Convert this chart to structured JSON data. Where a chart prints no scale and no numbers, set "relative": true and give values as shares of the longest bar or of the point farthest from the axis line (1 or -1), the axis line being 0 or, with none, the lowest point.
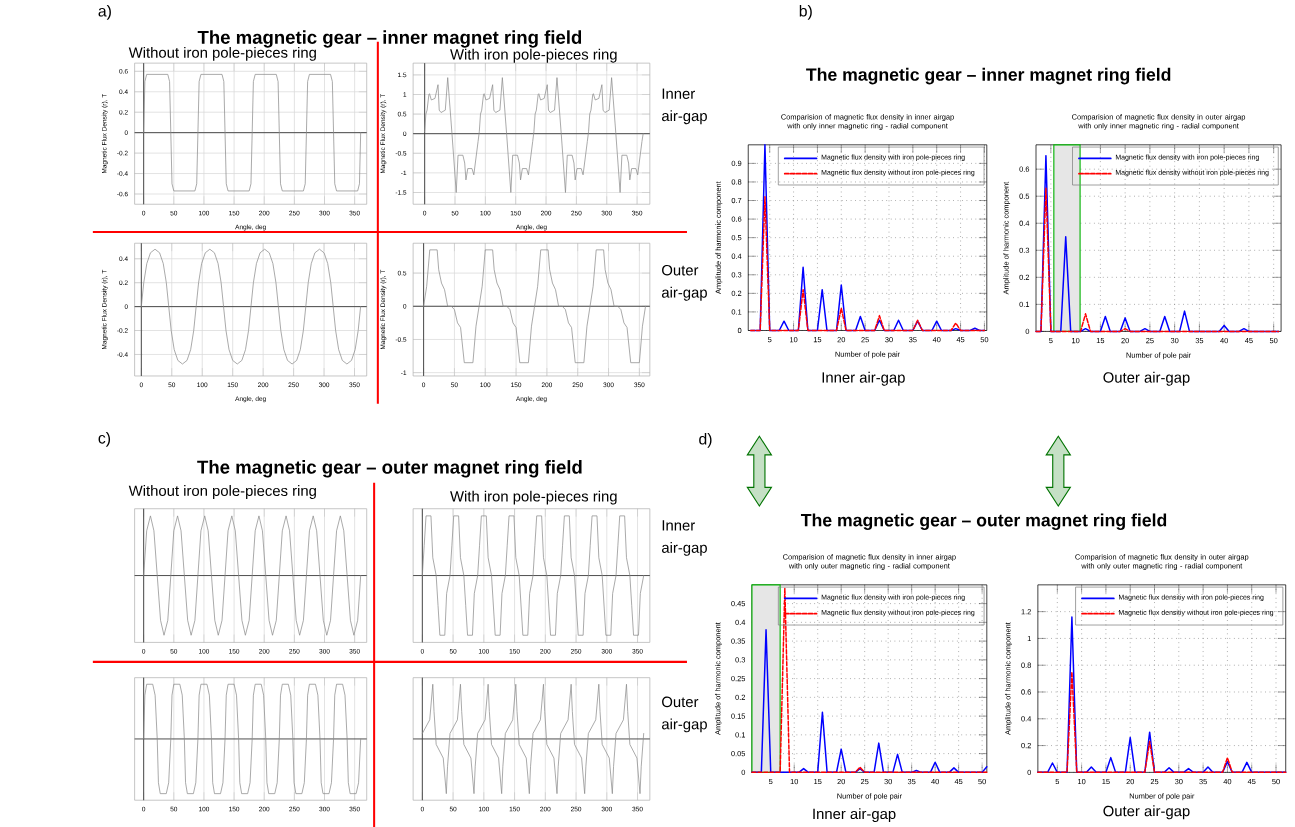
{
  "chart_data": [
    {
      "type": "line",
      "title": "The magnetic gear – inner magnet ring field",
      "subtitle": "Without iron pole-pieces ring",
      "xlabel": "Angle, deg",
      "ylabel": "Magnetic Flux Density (r), T",
      "xlim": [
        -15,
        370
      ],
      "ylim": [
        -0.7,
        0.68
      ],
      "xticks": [
        0,
        50,
        100,
        150,
        200,
        250,
        300,
        350
      ],
      "yticks": [
        -0.6,
        -0.4,
        -0.2,
        0,
        0.2,
        0.4,
        0.6
      ],
      "grid": true,
      "annotations": [
        "a)"
      ],
      "series": [
        {
          "color": "#8c8c8c",
          "x": [
            0,
            2,
            5,
            40,
            43,
            45,
            47,
            50,
            85,
            88,
            90,
            92,
            95,
            130,
            133,
            135,
            137,
            140,
            175,
            178,
            180,
            182,
            185,
            220,
            223,
            225,
            227,
            230,
            265,
            268,
            270,
            272,
            275,
            310,
            313,
            315,
            317,
            320,
            355,
            358,
            360
          ],
          "values": [
            0,
            0.5,
            0.57,
            0.57,
            0.5,
            0,
            -0.5,
            -0.57,
            -0.57,
            -0.5,
            0,
            0.5,
            0.57,
            0.57,
            0.5,
            0,
            -0.5,
            -0.57,
            -0.57,
            -0.5,
            0,
            0.5,
            0.57,
            0.57,
            0.5,
            0,
            -0.5,
            -0.57,
            -0.57,
            -0.5,
            0,
            0.5,
            0.57,
            0.57,
            0.5,
            0,
            -0.5,
            -0.57,
            -0.57,
            -0.5,
            0
          ]
        }
      ]
    },
    {
      "type": "line",
      "subtitle": "With iron pole-pieces ring",
      "xlabel": "Angle, deg",
      "ylabel": "Magnetic Flux Density (r), T",
      "xlim": [
        -19,
        371
      ],
      "ylim": [
        -1.8,
        1.8
      ],
      "xticks": [
        0,
        50,
        100,
        150,
        200,
        250,
        300,
        350
      ],
      "yticks": [
        -1.5,
        -1,
        -0.5,
        0,
        0.5,
        1,
        1.5
      ],
      "grid": true,
      "annotations": [
        "Inner air-gap"
      ],
      "series": [
        {
          "color": "#8c8c8c",
          "x": [
            0,
            2,
            4,
            7,
            8,
            11,
            17,
            22,
            24,
            27,
            34,
            38,
            45,
            52,
            55,
            63,
            66,
            68,
            71,
            78,
            81,
            88,
            90,
            92,
            94,
            97,
            98,
            101,
            107,
            112,
            114,
            117,
            124,
            128,
            135,
            142,
            145,
            153,
            156,
            158,
            161,
            168,
            171,
            178,
            180,
            182,
            184,
            187,
            188,
            191,
            197,
            202,
            204,
            207,
            214,
            218,
            225,
            232,
            235,
            243,
            246,
            248,
            251,
            258,
            261,
            268,
            270,
            272,
            274,
            277,
            278,
            281,
            287,
            292,
            294,
            297,
            304,
            308,
            315,
            322,
            325,
            333,
            336,
            338,
            341,
            348,
            351,
            358,
            360
          ],
          "values": [
            0.05,
            0.5,
            0.6,
            1.0,
            1.02,
            0.86,
            0.9,
            1.25,
            0.6,
            0.54,
            0.6,
            1.43,
            0,
            -1.5,
            -0.55,
            -0.55,
            -0.75,
            -1.18,
            -0.89,
            -0.89,
            -1.05,
            -0.2,
            0.05,
            0.5,
            0.6,
            1.0,
            1.02,
            0.86,
            0.9,
            1.25,
            0.6,
            0.54,
            0.6,
            1.43,
            0,
            -1.5,
            -0.55,
            -0.55,
            -0.75,
            -1.18,
            -0.89,
            -0.89,
            -1.05,
            -0.2,
            0.05,
            0.5,
            0.6,
            1.0,
            1.02,
            0.86,
            0.9,
            1.25,
            0.6,
            0.54,
            0.6,
            1.43,
            0,
            -1.5,
            -0.55,
            -0.55,
            -0.75,
            -1.18,
            -0.89,
            -0.89,
            -1.05,
            -0.2,
            0.05,
            0.5,
            0.6,
            1.0,
            1.02,
            0.86,
            0.9,
            1.25,
            0.6,
            0.54,
            0.6,
            1.43,
            0,
            -1.5,
            -0.55,
            -0.55,
            -0.75,
            -1.18,
            -0.89,
            -0.89,
            -1.05,
            -0.2,
            0
          ]
        }
      ]
    },
    {
      "type": "line",
      "xlabel": "Angle, deg",
      "ylabel": "Magnetic Flux Density (r), T",
      "xlim": [
        -11,
        370
      ],
      "ylim": [
        -0.58,
        0.53
      ],
      "xticks": [
        0,
        50,
        100,
        150,
        200,
        250,
        300,
        350
      ],
      "yticks": [
        -0.4,
        -0.2,
        0,
        0.2,
        0.4
      ],
      "grid": true,
      "series": [
        {
          "color": "#8c8c8c",
          "x": [
            0,
            4,
            9,
            15,
            22.5,
            30,
            36,
            41,
            45,
            49,
            54,
            60,
            67.5,
            75,
            81,
            86,
            90,
            94,
            99,
            105,
            112.5,
            120,
            126,
            131,
            135,
            139,
            144,
            150,
            157.5,
            165,
            171,
            176,
            180,
            184,
            189,
            195,
            202.5,
            210,
            216,
            221,
            225,
            229,
            234,
            240,
            247.5,
            255,
            261,
            266,
            270,
            274,
            279,
            285,
            292.5,
            300,
            306,
            311,
            315,
            319,
            324,
            330,
            337.5,
            345,
            351,
            356,
            360
          ],
          "values": [
            0,
            0.2,
            0.36,
            0.45,
            0.48,
            0.45,
            0.36,
            0.2,
            0,
            -0.2,
            -0.36,
            -0.45,
            -0.48,
            -0.45,
            -0.36,
            -0.2,
            0,
            0.2,
            0.36,
            0.45,
            0.48,
            0.45,
            0.36,
            0.2,
            0,
            -0.2,
            -0.36,
            -0.45,
            -0.48,
            -0.45,
            -0.36,
            -0.2,
            0,
            0.2,
            0.36,
            0.45,
            0.48,
            0.45,
            0.36,
            0.2,
            0,
            -0.2,
            -0.36,
            -0.45,
            -0.48,
            -0.45,
            -0.36,
            -0.2,
            0,
            0.2,
            0.36,
            0.45,
            0.48,
            0.45,
            0.36,
            0.2,
            0,
            -0.2,
            -0.36,
            -0.45,
            -0.48,
            -0.45,
            -0.36,
            -0.2,
            0
          ]
        }
      ]
    },
    {
      "type": "line",
      "xlabel": "Angle, deg",
      "ylabel": "Magnetic Flux Density (r), T",
      "xlim": [
        -17,
        367
      ],
      "ylim": [
        -1.05,
        0.95
      ],
      "xticks": [
        0,
        50,
        100,
        150,
        200,
        250,
        300,
        350
      ],
      "yticks": [
        -1,
        -0.5,
        0,
        0.5
      ],
      "grid": true,
      "annotations": [
        "Outer air-gap"
      ],
      "series": [
        {
          "color": "#8c8c8c",
          "x": [
            0,
            5,
            10,
            22,
            24.5,
            29,
            34,
            39,
            45,
            50,
            55,
            60,
            66,
            80,
            85,
            90,
            95,
            100,
            112,
            114.5,
            119,
            124,
            129,
            135,
            140,
            145,
            150,
            156,
            170,
            175,
            180,
            185,
            190,
            202,
            204.5,
            209,
            214,
            219,
            225,
            230,
            235,
            240,
            246,
            260,
            265,
            270,
            275,
            280,
            292,
            294.5,
            299,
            304,
            309,
            315,
            320,
            325,
            330,
            336,
            350,
            355,
            360
          ],
          "values": [
            0,
            0.3,
            0.85,
            0.85,
            0.55,
            0.35,
            0.25,
            0,
            0,
            -0.05,
            -0.25,
            -0.32,
            -0.85,
            -0.85,
            -0.3,
            0,
            0.3,
            0.85,
            0.85,
            0.55,
            0.35,
            0.25,
            0,
            0,
            -0.05,
            -0.25,
            -0.32,
            -0.85,
            -0.85,
            -0.3,
            0,
            0.3,
            0.85,
            0.85,
            0.55,
            0.35,
            0.25,
            0,
            0,
            -0.05,
            -0.25,
            -0.32,
            -0.85,
            -0.85,
            -0.3,
            0,
            0.3,
            0.85,
            0.85,
            0.55,
            0.35,
            0.25,
            0,
            0,
            -0.05,
            -0.25,
            -0.32,
            -0.85,
            -0.85,
            -0.3,
            0
          ]
        }
      ]
    },
    {
      "type": "line",
      "title": "Comparision of magnetic flux density in inner airgap with only inner magnetic ring - radial component",
      "xlabel": "Number of pole pair",
      "ylabel": "Amplitude of harmonic component",
      "xlim": [
        0.5,
        50.5
      ],
      "ylim": [
        0,
        1
      ],
      "xticks": [
        5,
        10,
        15,
        20,
        25,
        30,
        35,
        40,
        45,
        50
      ],
      "yticks": [
        0,
        0.1,
        0.2,
        0.3,
        0.4,
        0.5,
        0.6,
        0.7,
        0.8,
        0.9
      ],
      "grid": true,
      "legend": "top right",
      "annotations": [
        "b)",
        "The magnetic gear – inner magnet ring field",
        "Inner air-gap"
      ],
      "series": [
        {
          "name": "Magnetic flux density with iron pole-pieces ring",
          "color": "#0000ff",
          "line_style": "solid",
          "x": [
            1,
            3,
            4,
            5,
            7,
            8,
            9,
            11,
            12,
            13,
            15,
            16,
            17,
            19,
            20,
            21,
            23,
            24,
            25,
            27,
            28,
            29,
            31,
            32,
            33,
            35,
            36,
            37,
            39,
            40,
            41,
            43,
            44,
            45,
            47,
            48,
            49,
            50
          ],
          "values": [
            0,
            0,
            1.0,
            0,
            0,
            0.05,
            0,
            0,
            0.34,
            0,
            0,
            0.22,
            0,
            0,
            0.245,
            0,
            0,
            0.075,
            0,
            0,
            0.055,
            0,
            0,
            0.055,
            0,
            0,
            0.05,
            0,
            0,
            0.05,
            0,
            0,
            0.01,
            0,
            0,
            0.012,
            0,
            0
          ]
        },
        {
          "name": "Magnetic flux density without iron pole-pieces ring",
          "color": "#ff0000",
          "line_style": "dashed",
          "x": [
            1,
            3,
            4,
            5,
            11,
            12,
            13,
            19,
            20,
            21,
            27,
            28,
            29,
            35,
            36,
            37,
            43,
            44,
            45,
            50
          ],
          "values": [
            0,
            0,
            0.72,
            0,
            0,
            0.22,
            0,
            0,
            0.12,
            0,
            0,
            0.08,
            0,
            0,
            0.055,
            0,
            0,
            0.04,
            0,
            0
          ]
        }
      ]
    },
    {
      "type": "line",
      "title": "Comparision of magnetic flux density in outer airgap with only inner magnetic ring - radial component",
      "xlabel": "Number of pole pair",
      "ylabel": "Amplitude of harmonic component",
      "xlim": [
        2,
        51.5
      ],
      "ylim": [
        0,
        0.69
      ],
      "xticks": [
        5,
        10,
        15,
        20,
        25,
        30,
        35,
        40,
        45,
        50
      ],
      "yticks": [
        0,
        0.1,
        0.2,
        0.3,
        0.4,
        0.5,
        0.6
      ],
      "grid": true,
      "legend": "top right",
      "annotations": [
        "Outer air-gap"
      ],
      "bands": [
        {
          "axis": "x",
          "from": 5.6,
          "to": 10.9,
          "color": "#e6e6e6"
        }
      ],
      "series": [
        {
          "name": "Magnetic flux density with iron pole-pieces ring",
          "color": "#0000ff",
          "line_style": "solid",
          "x": [
            2,
            3,
            4,
            5,
            7,
            8,
            9,
            11,
            12,
            13,
            15,
            16,
            17,
            19,
            20,
            21,
            23,
            24,
            25,
            27,
            28,
            29,
            31,
            32,
            33,
            39,
            40,
            41,
            43,
            44,
            45,
            51
          ],
          "values": [
            0,
            0,
            0.65,
            0,
            0,
            0.35,
            0,
            0,
            0.01,
            0,
            0,
            0.055,
            0,
            0,
            0.05,
            0,
            0,
            0.01,
            0,
            0,
            0.055,
            0,
            0,
            0.075,
            0,
            0,
            0.022,
            0,
            0,
            0.01,
            0,
            0
          ]
        },
        {
          "name": "Magnetic flux density without iron pole-pieces ring",
          "color": "#ff0000",
          "line_style": "dashed",
          "x": [
            2,
            3,
            4,
            5,
            11,
            12,
            13,
            19,
            20,
            21,
            51
          ],
          "values": [
            0,
            0,
            0.53,
            0,
            0,
            0.065,
            0,
            0,
            0.01,
            0,
            0
          ]
        }
      ]
    },
    {
      "type": "line",
      "relative": true,
      "title": "The magnetic gear – outer magnet ring field",
      "subtitle": "Without iron pole-pieces ring",
      "xlim": [
        -15,
        370
      ],
      "xticks": [
        0,
        50,
        100,
        150,
        200,
        250,
        300,
        350
      ],
      "grid": "x",
      "annotations": [
        "c)"
      ],
      "series": [
        {
          "color": "#8c8c8c",
          "x": [
            0,
            5,
            11.25,
            17,
            22.5,
            28,
            33.75,
            40,
            45,
            50,
            56.25,
            62,
            67.5,
            73,
            78.75,
            85,
            90,
            95,
            101.25,
            107,
            112.5,
            118,
            123.75,
            130,
            135,
            140,
            146.25,
            152,
            157.5,
            163,
            168.75,
            175,
            180,
            185,
            191.25,
            197,
            202.5,
            208,
            213.75,
            220,
            225,
            230,
            236.25,
            242,
            247.5,
            253,
            258.75,
            265,
            270,
            275,
            281.25,
            287,
            292.5,
            298,
            303.75,
            310,
            315,
            320,
            326.25,
            332,
            337.5,
            343,
            348.75,
            355,
            360
          ],
          "values": [
            0,
            0.75,
            1,
            0.75,
            0,
            -0.75,
            -1,
            -0.75,
            0,
            0.75,
            1,
            0.75,
            0,
            -0.75,
            -1,
            -0.75,
            0,
            0.75,
            1,
            0.75,
            0,
            -0.75,
            -1,
            -0.75,
            0,
            0.75,
            1,
            0.75,
            0,
            -0.75,
            -1,
            -0.75,
            0,
            0.75,
            1,
            0.75,
            0,
            -0.75,
            -1,
            -0.75,
            0,
            0.75,
            1,
            0.75,
            0,
            -0.75,
            -1,
            -0.75,
            0,
            0.75,
            1,
            0.75,
            0,
            -0.75,
            -1,
            -0.75,
            0,
            0.75,
            1,
            0.75,
            0,
            -0.75,
            -1,
            -0.75,
            0
          ]
        }
      ]
    },
    {
      "type": "line",
      "relative": true,
      "subtitle": "With iron pole-pieces ring",
      "xlim": [
        -15,
        370
      ],
      "xticks": [
        0,
        50,
        100,
        150,
        200,
        250,
        300,
        350
      ],
      "grid": "x",
      "annotations": [
        "Inner air-gap"
      ],
      "series": [
        {
          "color": "#8c8c8c",
          "x": [
            0,
            3,
            6,
            14,
            17,
            22.5,
            25.5,
            28.5,
            36.5,
            39.5,
            45,
            48,
            51,
            59,
            62,
            67.5,
            70.5,
            73.5,
            81.5,
            84.5,
            90,
            93,
            96,
            104,
            107,
            112.5,
            115.5,
            118.5,
            126.5,
            129.5,
            135,
            138,
            141,
            149,
            152,
            157.5,
            160.5,
            163.5,
            171.5,
            174.5,
            180,
            183,
            186,
            194,
            197,
            202.5,
            205.5,
            208.5,
            216.5,
            219.5,
            225,
            228,
            231,
            239,
            242,
            247.5,
            250.5,
            253.5,
            261.5,
            264.5,
            270,
            273,
            276,
            284,
            287,
            292.5,
            295.5,
            298.5,
            306.5,
            309.5,
            315,
            318,
            321,
            329,
            332,
            337.5,
            340.5,
            343.5,
            351.5,
            354.5,
            360
          ],
          "values": [
            0,
            0.5,
            1,
            1,
            0.3,
            0,
            -0.5,
            -1,
            -1,
            -0.3,
            0,
            0.5,
            1,
            1,
            0.3,
            0,
            -0.5,
            -1,
            -1,
            -0.3,
            0,
            0.5,
            1,
            1,
            0.3,
            0,
            -0.5,
            -1,
            -1,
            -0.3,
            0,
            0.5,
            1,
            1,
            0.3,
            0,
            -0.5,
            -1,
            -1,
            -0.3,
            0,
            0.5,
            1,
            1,
            0.3,
            0,
            -0.5,
            -1,
            -1,
            -0.3,
            0,
            0.5,
            1,
            1,
            0.3,
            0,
            -0.5,
            -1,
            -1,
            -0.3,
            0,
            0.5,
            1,
            1,
            0.3,
            0,
            -0.5,
            -1,
            -1,
            -0.3,
            0,
            0.5,
            1,
            1,
            0.3,
            0,
            -0.5,
            -1,
            -1,
            -0.3,
            0
          ]
        }
      ]
    },
    {
      "type": "line",
      "relative": true,
      "xlim": [
        -15,
        370
      ],
      "xticks": [
        0,
        50,
        100,
        150,
        200,
        250,
        300,
        350
      ],
      "grid": "x",
      "series": [
        {
          "color": "#8c8c8c",
          "x": [
            0,
            2,
            5,
            15,
            19,
            22.5,
            24.5,
            27.5,
            37.5,
            41.5,
            45,
            47,
            50,
            60,
            64,
            67.5,
            69.5,
            72.5,
            82.5,
            86.5,
            90,
            92,
            95,
            105,
            109,
            112.5,
            114.5,
            117.5,
            127.5,
            131.5,
            135,
            137,
            140,
            150,
            154,
            157.5,
            159.5,
            162.5,
            172.5,
            176.5,
            180,
            182,
            185,
            195,
            199,
            202.5,
            204.5,
            207.5,
            217.5,
            221.5,
            225,
            227,
            230,
            240,
            244,
            247.5,
            249.5,
            252.5,
            262.5,
            266.5,
            270,
            272,
            275,
            285,
            289,
            292.5,
            294.5,
            297.5,
            307.5,
            311.5,
            315,
            317,
            320,
            330,
            334,
            337.5,
            339.5,
            342.5,
            352.5,
            356.5,
            360
          ],
          "values": [
            0,
            0.8,
            1,
            1,
            0.8,
            0,
            -0.8,
            -1,
            -1,
            -0.8,
            0,
            0.8,
            1,
            1,
            0.8,
            0,
            -0.8,
            -1,
            -1,
            -0.8,
            0,
            0.8,
            1,
            1,
            0.8,
            0,
            -0.8,
            -1,
            -1,
            -0.8,
            0,
            0.8,
            1,
            1,
            0.8,
            0,
            -0.8,
            -1,
            -1,
            -0.8,
            0,
            0.8,
            1,
            1,
            0.8,
            0,
            -0.8,
            -1,
            -1,
            -0.8,
            0,
            0.8,
            1,
            1,
            0.8,
            0,
            -0.8,
            -1,
            -1,
            -0.8,
            0,
            0.8,
            1,
            1,
            0.8,
            0,
            -0.8,
            -1,
            -1,
            -0.8,
            0,
            0.8,
            1,
            1,
            0.8,
            0,
            -0.8,
            -1,
            -1,
            -0.8,
            0
          ]
        }
      ]
    },
    {
      "type": "line",
      "relative": true,
      "xlim": [
        -15,
        370
      ],
      "xticks": [
        0,
        50,
        100,
        150,
        200,
        250,
        300,
        350
      ],
      "grid": "x",
      "annotations": [
        "Outer air-gap"
      ],
      "series": [
        {
          "color": "#8c8c8c",
          "x": [
            0,
            12,
            17,
            19,
            22.5,
            34,
            39,
            41,
            45,
            57,
            62,
            64,
            67.5,
            79,
            84,
            86,
            90,
            102,
            107,
            109,
            112.5,
            124,
            129,
            131,
            135,
            147,
            152,
            154,
            157.5,
            169,
            174,
            176,
            180,
            192,
            197,
            199,
            202.5,
            214,
            219,
            221,
            225,
            237,
            242,
            244,
            247.5,
            259,
            264,
            266,
            270,
            282,
            287,
            289,
            292.5,
            304,
            309,
            311,
            315,
            327,
            332,
            334,
            337.5,
            349,
            354,
            356,
            360
          ],
          "values": [
            0.1,
            0.35,
            1,
            0.5,
            -0.1,
            -0.35,
            -1,
            -0.5,
            0.1,
            0.35,
            1,
            0.5,
            -0.1,
            -0.35,
            -1,
            -0.5,
            0.1,
            0.35,
            1,
            0.5,
            -0.1,
            -0.35,
            -1,
            -0.5,
            0.1,
            0.35,
            1,
            0.5,
            -0.1,
            -0.35,
            -1,
            -0.5,
            0.1,
            0.35,
            1,
            0.5,
            -0.1,
            -0.35,
            -1,
            -0.5,
            0.1,
            0.35,
            1,
            0.5,
            -0.1,
            -0.35,
            -1,
            -0.5,
            0.1,
            0.35,
            1,
            0.5,
            -0.1,
            -0.35,
            -1,
            -0.5,
            0.1,
            0.35,
            1,
            0.5,
            -0.1,
            -0.35,
            -1,
            -0.5,
            0.1
          ]
        }
      ]
    },
    {
      "type": "line",
      "title": "Comparision of magnetic flux density in inner airgap with only outer magnetic ring - radial component",
      "xlabel": "Number of pole pair",
      "ylabel": "Amplitude of harmonic component",
      "xlim": [
        1,
        51
      ],
      "ylim": [
        0,
        0.5
      ],
      "xticks": [
        5,
        10,
        15,
        20,
        25,
        30,
        35,
        40,
        45,
        50
      ],
      "yticks": [
        0,
        0.05,
        0.1,
        0.15,
        0.2,
        0.25,
        0.3,
        0.35,
        0.4,
        0.45
      ],
      "grid": true,
      "legend": "top right",
      "annotations": [
        "d)",
        "The magnetic gear – outer magnet ring field",
        "Inner air-gap"
      ],
      "bands": [
        {
          "axis": "x",
          "from": 1,
          "to": 7,
          "color": "#e6e6e6"
        }
      ],
      "series": [
        {
          "name": "Magnetic flux density with iron pole-pieces ring",
          "color": "#0000ff",
          "line_style": "solid",
          "x": [
            1,
            3,
            4,
            5,
            7,
            8,
            9,
            11,
            12,
            13,
            15,
            16,
            17,
            19,
            20,
            21,
            23,
            24,
            25,
            27,
            28,
            29,
            31,
            32,
            33,
            35,
            36,
            37,
            39,
            40,
            41,
            43,
            44,
            45,
            50,
            51
          ],
          "values": [
            0,
            0,
            0.38,
            0,
            0,
            null,
            0,
            0,
            0.01,
            0,
            0,
            0.16,
            0,
            0,
            0.062,
            0,
            0,
            0.01,
            0,
            0,
            0.078,
            0,
            0,
            0.048,
            0,
            0,
            0.005,
            0,
            0,
            0.027,
            0,
            0,
            0.012,
            0,
            0,
            0.015
          ]
        },
        {
          "name": "Magnetic flux density without iron pole-pieces ring",
          "color": "#ff0000",
          "line_style": "dashed",
          "x": [
            1,
            7,
            8,
            9,
            23,
            24,
            25,
            51
          ],
          "values": [
            0,
            0,
            0.49,
            0,
            0,
            0.014,
            0,
            0
          ]
        }
      ]
    },
    {
      "type": "line",
      "title": "Comparision of magnetic flux density in outer airgap with only outer magnetic ring - radial component",
      "xlabel": "Number of pole pair",
      "ylabel": "Amplitude of harmonic component",
      "xlim": [
        1,
        52
      ],
      "ylim": [
        0,
        1.4
      ],
      "xticks": [
        5,
        10,
        15,
        20,
        25,
        30,
        35,
        40,
        45,
        50
      ],
      "yticks": [
        0,
        0.2,
        0.4,
        0.6,
        0.8,
        1,
        1.2
      ],
      "grid": true,
      "legend": "top right",
      "annotations": [
        "Outer air-gap"
      ],
      "series": [
        {
          "name": "Magnetic flux densitiy with iron pole-pieces ring",
          "color": "#0000ff",
          "line_style": "solid",
          "x": [
            1,
            3,
            4,
            5,
            7,
            8,
            9,
            11,
            12,
            13,
            15,
            16,
            17,
            19,
            20,
            21,
            23,
            24,
            25,
            27,
            28,
            29,
            31,
            32,
            33,
            35,
            36,
            37,
            39,
            40,
            41,
            43,
            44,
            45,
            52
          ],
          "values": [
            0,
            0,
            0.07,
            0,
            0,
            1.16,
            0,
            0,
            0.04,
            0,
            0,
            0.11,
            0,
            0,
            0.26,
            0,
            0,
            0.3,
            0,
            0,
            0.035,
            0,
            0,
            0.028,
            0,
            0,
            0.04,
            0,
            0,
            0.08,
            0,
            0,
            0.075,
            0,
            0
          ]
        },
        {
          "name": "Magnetic flux densitiy without iron pole-pieces ring",
          "color": "#ff0000",
          "line_style": "dashed",
          "x": [
            1,
            7,
            8,
            9,
            23,
            24,
            25,
            39,
            40,
            41,
            52
          ],
          "values": [
            0,
            0,
            0.75,
            0,
            0,
            0.23,
            0,
            0,
            0.11,
            0,
            0
          ]
        }
      ]
    }
  ]
}
